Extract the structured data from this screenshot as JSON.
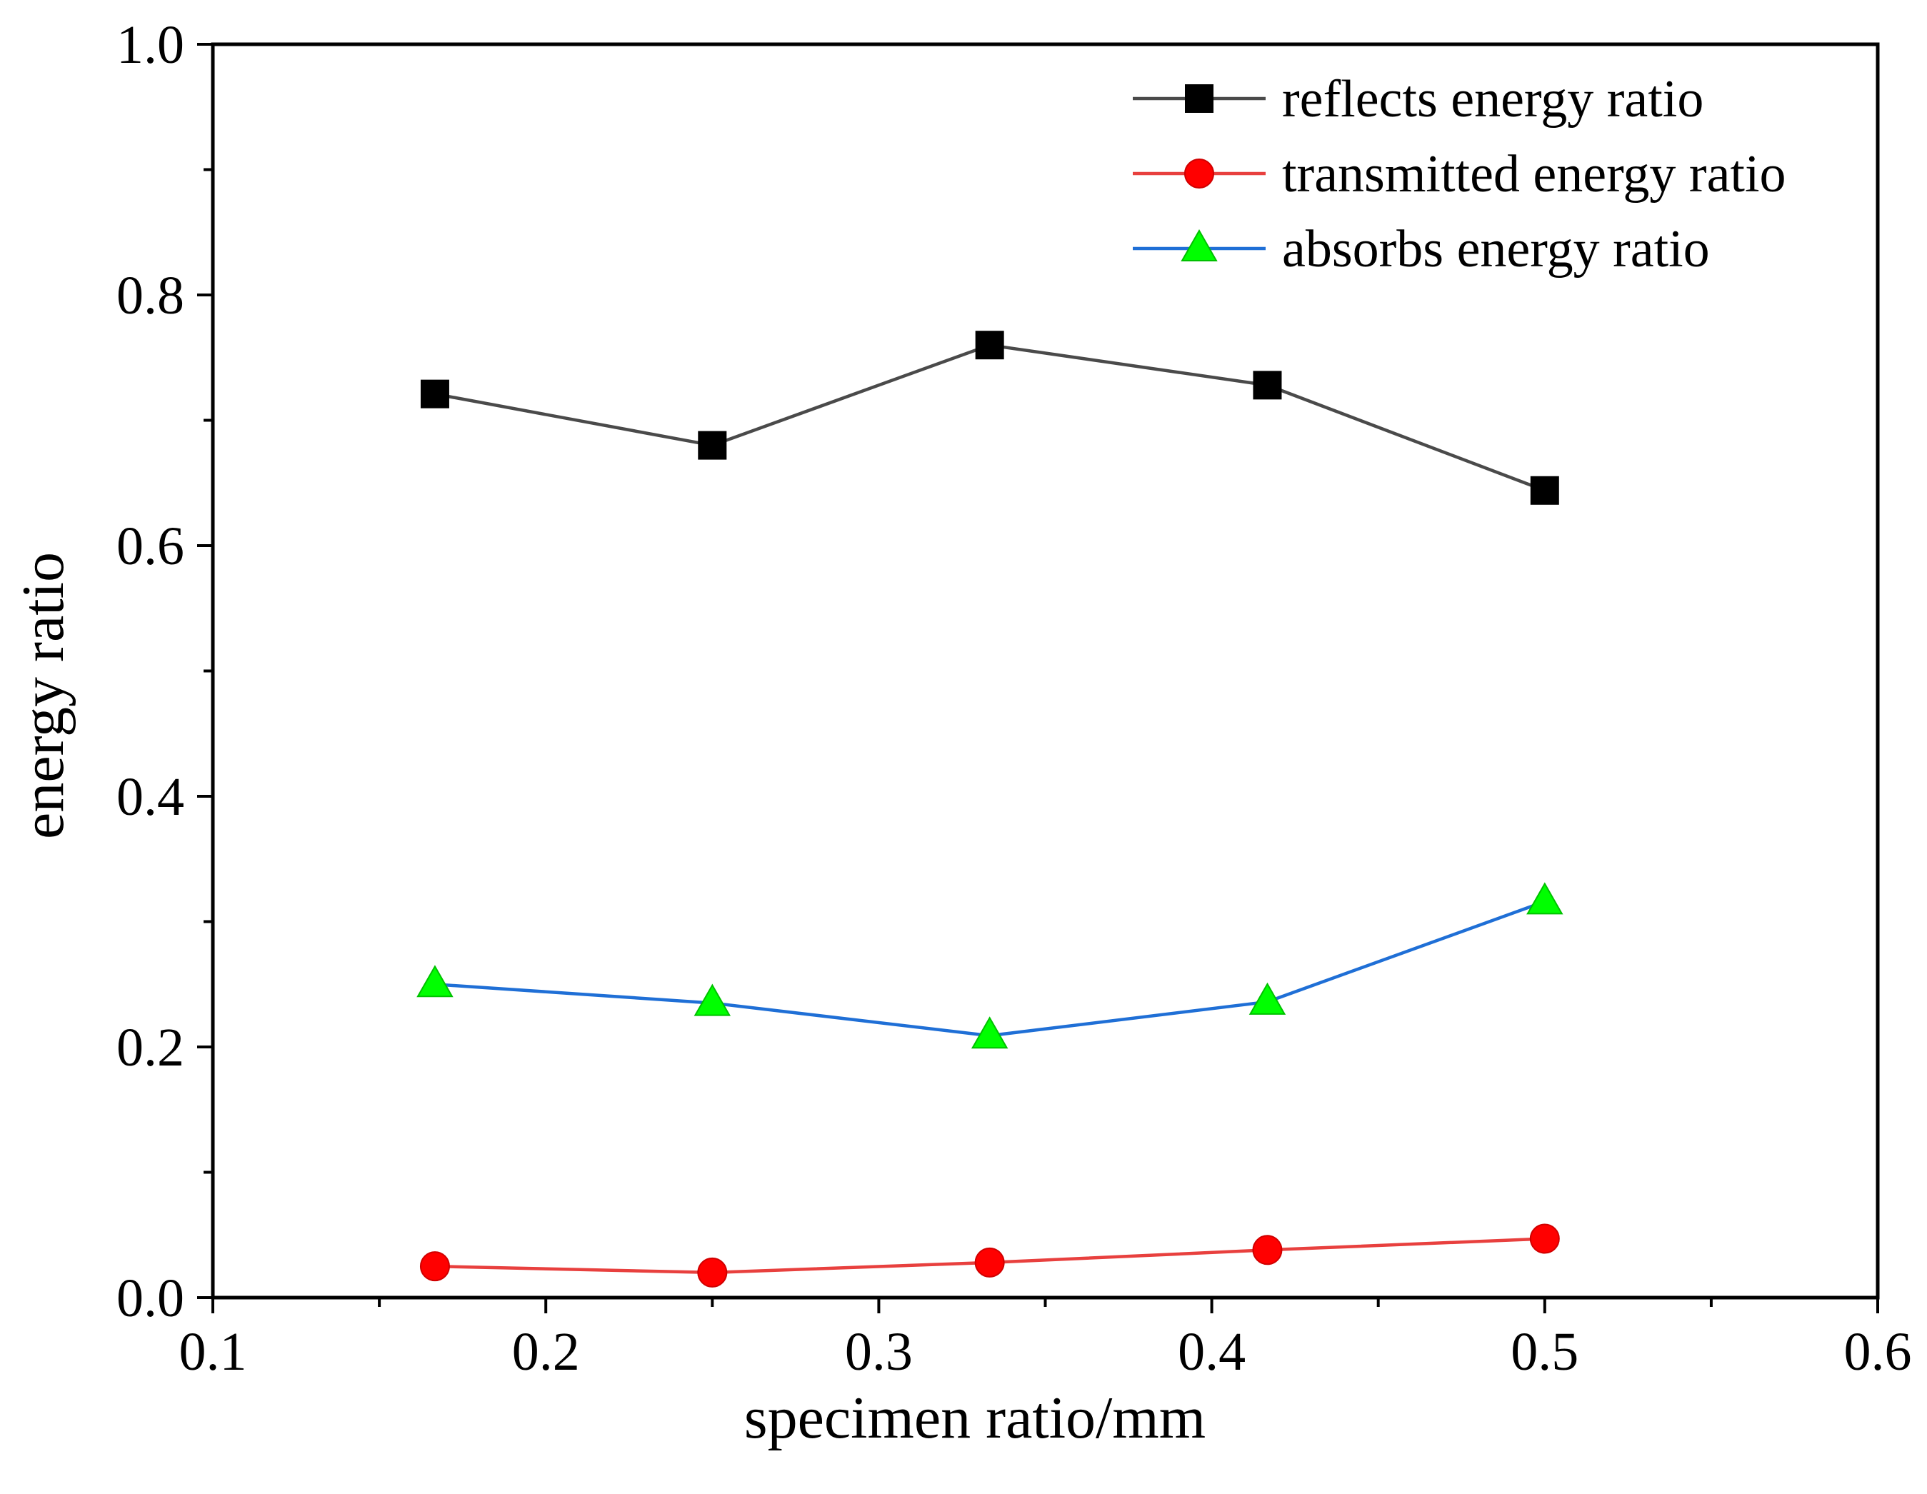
{
  "chart_data": {
    "type": "line",
    "xlabel": "specimen ratio/mm",
    "ylabel": "energy ratio",
    "xlim": [
      0.1,
      0.6
    ],
    "ylim": [
      0.0,
      1.0
    ],
    "x_tick_labels": [
      "0.1",
      "0.2",
      "0.3",
      "0.4",
      "0.5",
      "0.6"
    ],
    "y_tick_labels": [
      "0.0",
      "0.2",
      "0.4",
      "0.6",
      "0.8",
      "1.0"
    ],
    "grid": false,
    "legend": {
      "position": "top-right"
    },
    "x": [
      0.1667,
      0.25,
      0.3333,
      0.4167,
      0.5
    ],
    "series": [
      {
        "name": "reflects energy ratio",
        "marker_icon": "square-icon",
        "line_color": "#4a4a4a",
        "marker_color": "#000000",
        "marker_edge": "#000000",
        "values": [
          0.721,
          0.68,
          0.76,
          0.728,
          0.644
        ]
      },
      {
        "name": "transmitted energy ratio",
        "marker_icon": "circle-icon",
        "line_color": "#e8403e",
        "marker_color": "#ff0000",
        "marker_edge": "#d00000",
        "values": [
          0.025,
          0.02,
          0.028,
          0.038,
          0.047
        ]
      },
      {
        "name": "absorbs energy ratio",
        "marker_icon": "triangle-icon",
        "line_color": "#1f6fd6",
        "marker_color": "#00ff00",
        "marker_edge": "#00c000",
        "values": [
          0.25,
          0.235,
          0.209,
          0.236,
          0.316
        ]
      }
    ]
  }
}
